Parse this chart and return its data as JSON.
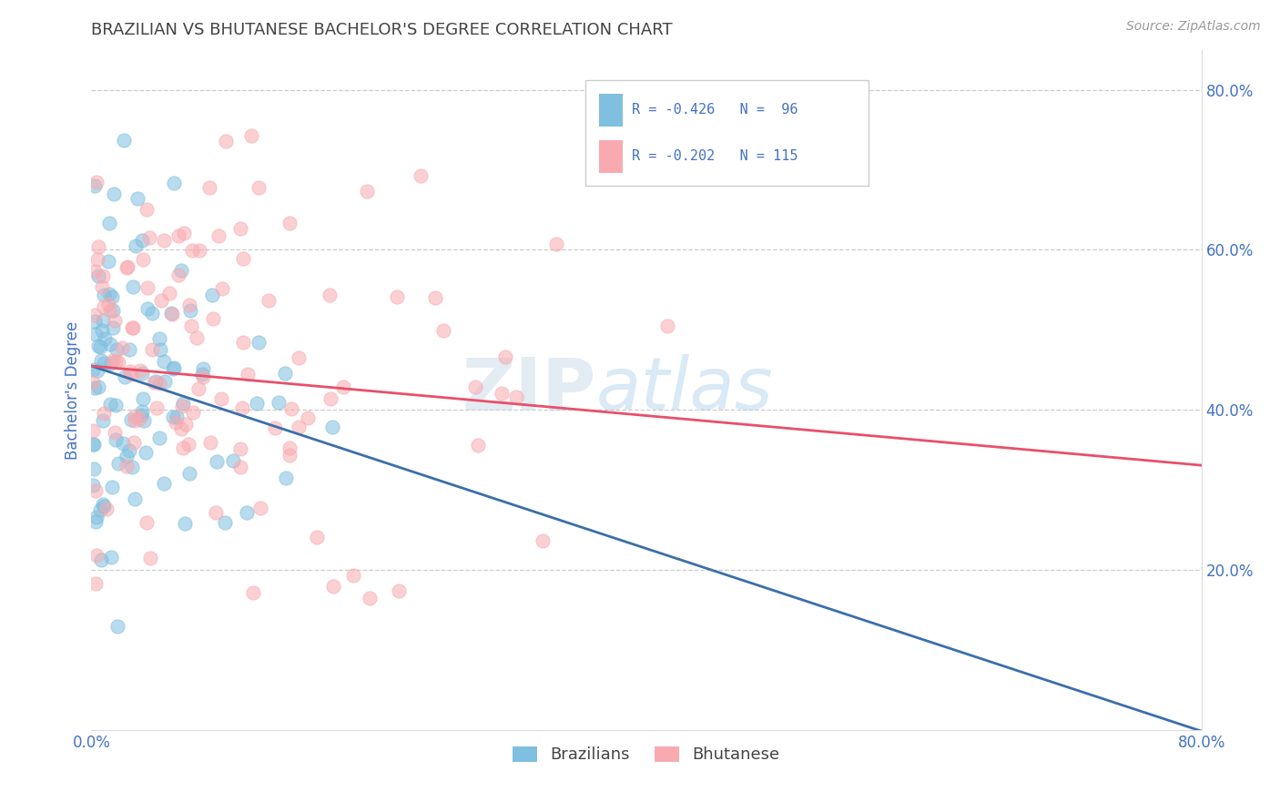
{
  "title": "BRAZILIAN VS BHUTANESE BACHELOR'S DEGREE CORRELATION CHART",
  "source_text": "Source: ZipAtlas.com",
  "ylabel": "Bachelor's Degree",
  "xlim": [
    0.0,
    0.8
  ],
  "ylim": [
    0.0,
    0.85
  ],
  "grid_color": "#cccccc",
  "background_color": "#ffffff",
  "watermark_text": "ZIPAtlas",
  "legend_labels": [
    "Brazilians",
    "Bhutanese"
  ],
  "blue_color": "#7fbfdf",
  "pink_color": "#f8aab0",
  "blue_line_color": "#3a6faa",
  "pink_line_color": "#e8506a",
  "title_color": "#444444",
  "axis_label_color": "#4472c4",
  "tick_label_color": "#4472c4",
  "legend_r_color": "#4472c4",
  "seed": 42,
  "n_blue": 96,
  "n_pink": 115,
  "blue_intercept": 0.455,
  "blue_slope": -0.57,
  "pink_intercept": 0.455,
  "pink_slope": -0.155
}
